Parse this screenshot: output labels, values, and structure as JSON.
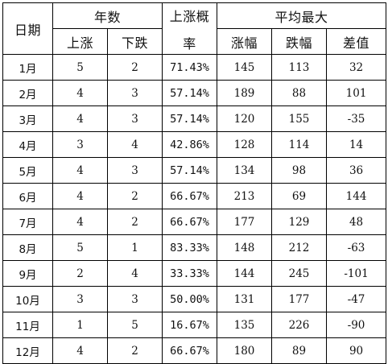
{
  "headers": {
    "date": "日期",
    "year_count": "年数",
    "rise": "上涨",
    "fall": "下跌",
    "rise_prob_line1": "上涨概",
    "rise_prob_line2": "率",
    "avg_max": "平均最大",
    "gain": "涨幅",
    "loss": "跌幅",
    "diff": "差值"
  },
  "rows": [
    {
      "month": "1月",
      "up": "5",
      "down": "2",
      "prob": "71.43%",
      "gain": "145",
      "loss": "113",
      "diff": "32"
    },
    {
      "month": "2月",
      "up": "4",
      "down": "3",
      "prob": "57.14%",
      "gain": "189",
      "loss": "88",
      "diff": "101"
    },
    {
      "month": "3月",
      "up": "4",
      "down": "3",
      "prob": "57.14%",
      "gain": "120",
      "loss": "155",
      "diff": "-35"
    },
    {
      "month": "4月",
      "up": "3",
      "down": "4",
      "prob": "42.86%",
      "gain": "128",
      "loss": "114",
      "diff": "14"
    },
    {
      "month": "5月",
      "up": "4",
      "down": "3",
      "prob": "57.14%",
      "gain": "134",
      "loss": "98",
      "diff": "36"
    },
    {
      "month": "6月",
      "up": "4",
      "down": "2",
      "prob": "66.67%",
      "gain": "213",
      "loss": "69",
      "diff": "144"
    },
    {
      "month": "7月",
      "up": "4",
      "down": "2",
      "prob": "66.67%",
      "gain": "177",
      "loss": "129",
      "diff": "48"
    },
    {
      "month": "8月",
      "up": "5",
      "down": "1",
      "prob": "83.33%",
      "gain": "148",
      "loss": "212",
      "diff": "-63"
    },
    {
      "month": "9月",
      "up": "2",
      "down": "4",
      "prob": "33.33%",
      "gain": "144",
      "loss": "245",
      "diff": "-101"
    },
    {
      "month": "10月",
      "up": "3",
      "down": "3",
      "prob": "50.00%",
      "gain": "131",
      "loss": "177",
      "diff": "-47"
    },
    {
      "month": "11月",
      "up": "1",
      "down": "5",
      "prob": "16.67%",
      "gain": "135",
      "loss": "226",
      "diff": "-90"
    },
    {
      "month": "12月",
      "up": "4",
      "down": "2",
      "prob": "66.67%",
      "gain": "180",
      "loss": "89",
      "diff": "90"
    }
  ]
}
